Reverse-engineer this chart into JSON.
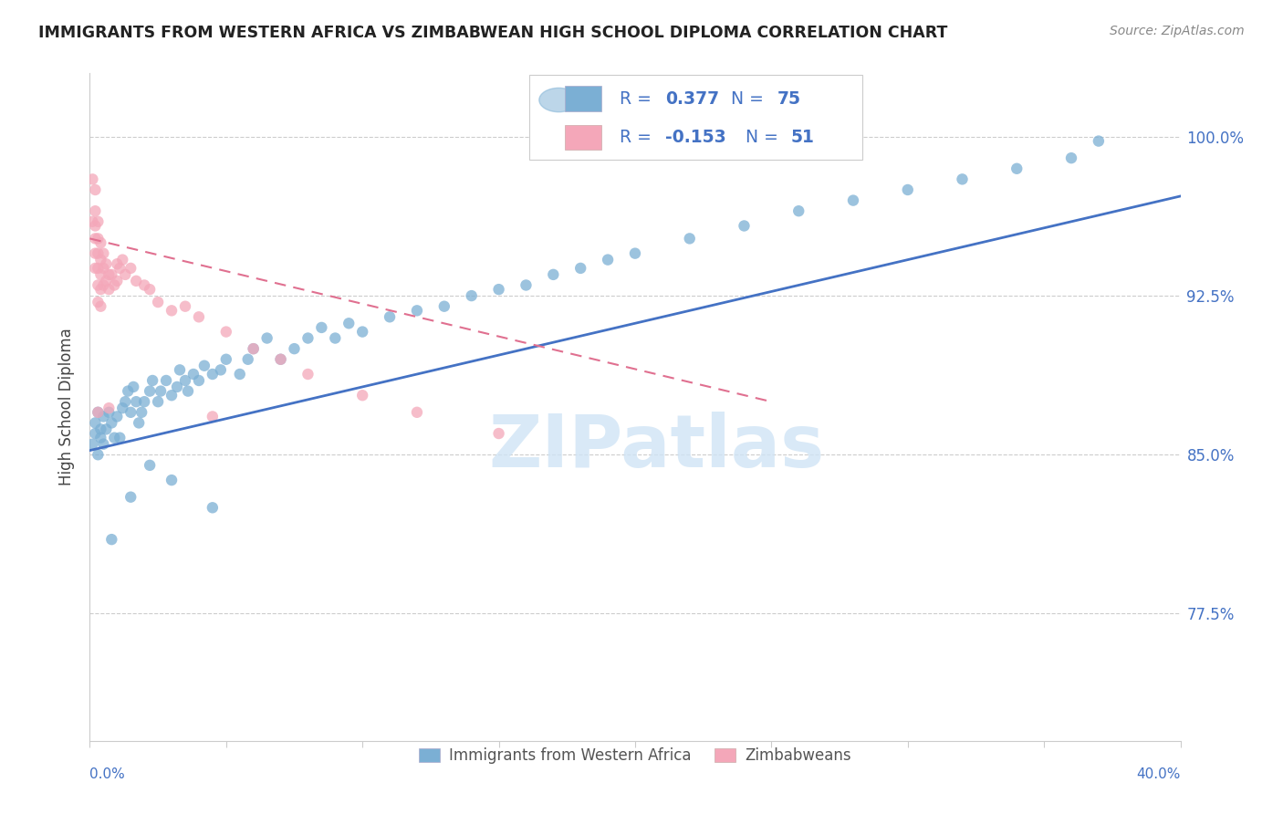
{
  "title": "IMMIGRANTS FROM WESTERN AFRICA VS ZIMBABWEAN HIGH SCHOOL DIPLOMA CORRELATION CHART",
  "source": "Source: ZipAtlas.com",
  "ylabel": "High School Diploma",
  "ytick_labels": [
    "77.5%",
    "85.0%",
    "92.5%",
    "100.0%"
  ],
  "ytick_values": [
    0.775,
    0.85,
    0.925,
    1.0
  ],
  "xlim": [
    0.0,
    0.4
  ],
  "ylim": [
    0.715,
    1.03
  ],
  "legend_label1": "Immigrants from Western Africa",
  "legend_label2": "Zimbabweans",
  "R1": "0.377",
  "N1": "75",
  "R2": "-0.153",
  "N2": "51",
  "blue_color": "#7bafd4",
  "pink_color": "#f4a7b9",
  "blue_line_color": "#4472c4",
  "pink_line_color": "#e07090",
  "legend_text_color": "#4472c4",
  "watermark_color": "#d0e4f5",
  "blue_scatter_x": [
    0.001,
    0.002,
    0.002,
    0.003,
    0.003,
    0.004,
    0.004,
    0.005,
    0.005,
    0.006,
    0.007,
    0.008,
    0.009,
    0.01,
    0.011,
    0.012,
    0.013,
    0.014,
    0.015,
    0.016,
    0.017,
    0.018,
    0.019,
    0.02,
    0.022,
    0.023,
    0.025,
    0.026,
    0.028,
    0.03,
    0.032,
    0.033,
    0.035,
    0.036,
    0.038,
    0.04,
    0.042,
    0.045,
    0.048,
    0.05,
    0.055,
    0.058,
    0.06,
    0.065,
    0.07,
    0.075,
    0.08,
    0.085,
    0.09,
    0.095,
    0.1,
    0.11,
    0.12,
    0.13,
    0.14,
    0.15,
    0.16,
    0.17,
    0.18,
    0.19,
    0.2,
    0.22,
    0.24,
    0.26,
    0.28,
    0.3,
    0.32,
    0.34,
    0.36,
    0.37,
    0.008,
    0.015,
    0.022,
    0.03,
    0.045
  ],
  "blue_scatter_y": [
    0.855,
    0.86,
    0.865,
    0.87,
    0.85,
    0.862,
    0.858,
    0.868,
    0.855,
    0.862,
    0.87,
    0.865,
    0.858,
    0.868,
    0.858,
    0.872,
    0.875,
    0.88,
    0.87,
    0.882,
    0.875,
    0.865,
    0.87,
    0.875,
    0.88,
    0.885,
    0.875,
    0.88,
    0.885,
    0.878,
    0.882,
    0.89,
    0.885,
    0.88,
    0.888,
    0.885,
    0.892,
    0.888,
    0.89,
    0.895,
    0.888,
    0.895,
    0.9,
    0.905,
    0.895,
    0.9,
    0.905,
    0.91,
    0.905,
    0.912,
    0.908,
    0.915,
    0.918,
    0.92,
    0.925,
    0.928,
    0.93,
    0.935,
    0.938,
    0.942,
    0.945,
    0.952,
    0.958,
    0.965,
    0.97,
    0.975,
    0.98,
    0.985,
    0.99,
    0.998,
    0.81,
    0.83,
    0.845,
    0.838,
    0.825
  ],
  "pink_scatter_x": [
    0.001,
    0.001,
    0.002,
    0.002,
    0.002,
    0.002,
    0.002,
    0.002,
    0.003,
    0.003,
    0.003,
    0.003,
    0.003,
    0.003,
    0.004,
    0.004,
    0.004,
    0.004,
    0.004,
    0.005,
    0.005,
    0.005,
    0.006,
    0.006,
    0.007,
    0.007,
    0.008,
    0.009,
    0.01,
    0.01,
    0.011,
    0.012,
    0.013,
    0.015,
    0.017,
    0.02,
    0.022,
    0.025,
    0.03,
    0.035,
    0.04,
    0.05,
    0.06,
    0.07,
    0.08,
    0.1,
    0.12,
    0.15,
    0.003,
    0.007,
    0.045
  ],
  "pink_scatter_y": [
    0.98,
    0.96,
    0.975,
    0.965,
    0.958,
    0.952,
    0.945,
    0.938,
    0.96,
    0.952,
    0.945,
    0.938,
    0.93,
    0.922,
    0.95,
    0.942,
    0.935,
    0.928,
    0.92,
    0.945,
    0.938,
    0.93,
    0.94,
    0.932,
    0.935,
    0.928,
    0.935,
    0.93,
    0.94,
    0.932,
    0.938,
    0.942,
    0.935,
    0.938,
    0.932,
    0.93,
    0.928,
    0.922,
    0.918,
    0.92,
    0.915,
    0.908,
    0.9,
    0.895,
    0.888,
    0.878,
    0.87,
    0.86,
    0.87,
    0.872,
    0.868
  ]
}
